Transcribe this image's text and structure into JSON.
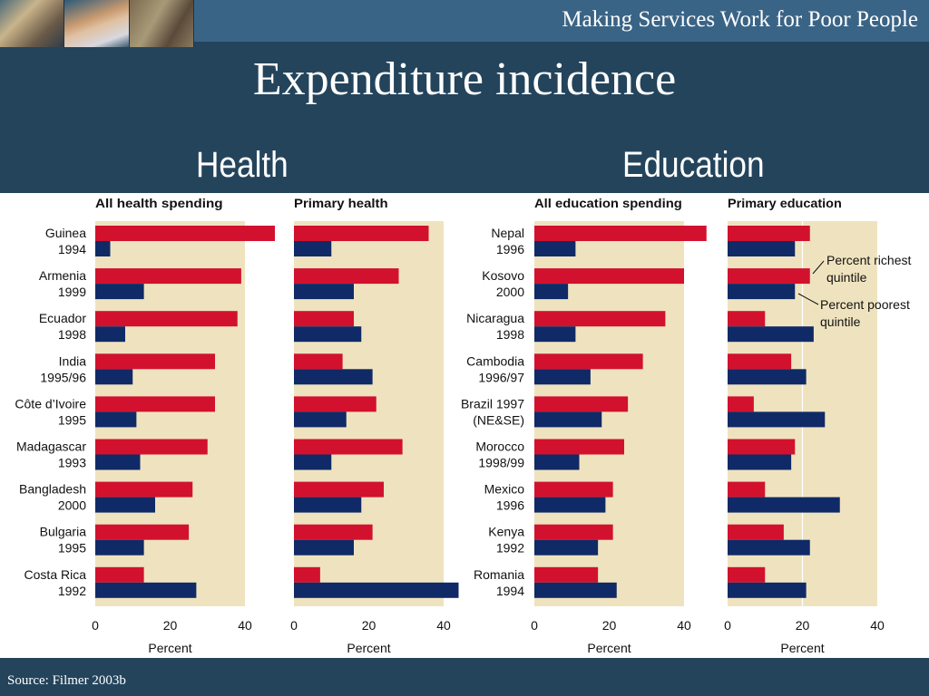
{
  "header": {
    "subtitle": "Making Services Work for Poor People",
    "title": "Expenditure incidence"
  },
  "sections": {
    "left": "Health",
    "right": "Education"
  },
  "footer": {
    "source": "Source: Filmer 2003b"
  },
  "legend": {
    "richest": [
      "Percent richest",
      "quintile"
    ],
    "poorest": [
      "Percent poorest",
      "quintile"
    ]
  },
  "colors": {
    "richest": "#d2112e",
    "poorest": "#0f2a66",
    "panel_bg": "#efe3bf",
    "header": "#24445c"
  },
  "chart_data": [
    {
      "type": "bar",
      "title": "All health spending",
      "xlabel": "Percent",
      "xlim": [
        0,
        40
      ],
      "xticks": [
        0,
        20,
        40
      ],
      "categories": [
        [
          "Guinea",
          "1994"
        ],
        [
          "Armenia",
          "1999"
        ],
        [
          "Ecuador",
          "1998"
        ],
        [
          "India",
          "1995/96"
        ],
        [
          "Côte d’Ivoire",
          "1995"
        ],
        [
          "Madagascar",
          "1993"
        ],
        [
          "Bangladesh",
          "2000"
        ],
        [
          "Bulgaria",
          "1995"
        ],
        [
          "Costa Rica",
          "1992"
        ]
      ],
      "series": [
        {
          "name": "Percent richest quintile",
          "values": [
            48,
            39,
            38,
            32,
            32,
            30,
            26,
            25,
            13
          ]
        },
        {
          "name": "Percent poorest quintile",
          "values": [
            4,
            13,
            8,
            10,
            11,
            12,
            16,
            13,
            27
          ]
        }
      ]
    },
    {
      "type": "bar",
      "title": "Primary health",
      "xlabel": "Percent",
      "xlim": [
        0,
        40
      ],
      "xticks": [
        0,
        20,
        40
      ],
      "categories": [
        [
          "Guinea",
          "1994"
        ],
        [
          "Armenia",
          "1999"
        ],
        [
          "Ecuador",
          "1998"
        ],
        [
          "India",
          "1995/96"
        ],
        [
          "Côte d’Ivoire",
          "1995"
        ],
        [
          "Madagascar",
          "1993"
        ],
        [
          "Bangladesh",
          "2000"
        ],
        [
          "Bulgaria",
          "1995"
        ],
        [
          "Costa Rica",
          "1992"
        ]
      ],
      "series": [
        {
          "name": "Percent richest quintile",
          "values": [
            36,
            28,
            16,
            13,
            22,
            29,
            24,
            21,
            7
          ]
        },
        {
          "name": "Percent poorest quintile",
          "values": [
            10,
            16,
            18,
            21,
            14,
            10,
            18,
            16,
            44
          ]
        }
      ]
    },
    {
      "type": "bar",
      "title": "All education spending",
      "xlabel": "Percent",
      "xlim": [
        0,
        40
      ],
      "xticks": [
        0,
        20,
        40
      ],
      "categories": [
        [
          "Nepal",
          "1996"
        ],
        [
          "Kosovo",
          "2000"
        ],
        [
          "Nicaragua",
          "1998"
        ],
        [
          "Cambodia",
          "1996/97"
        ],
        [
          "Brazil 1997",
          "(NE&SE)"
        ],
        [
          "Morocco",
          "1998/99"
        ],
        [
          "Mexico",
          "1996"
        ],
        [
          "Kenya",
          "1992"
        ],
        [
          "Romania",
          "1994"
        ]
      ],
      "series": [
        {
          "name": "Percent richest quintile",
          "values": [
            46,
            40,
            35,
            29,
            25,
            24,
            21,
            21,
            17
          ]
        },
        {
          "name": "Percent poorest quintile",
          "values": [
            11,
            9,
            11,
            15,
            18,
            12,
            19,
            17,
            22
          ]
        }
      ]
    },
    {
      "type": "bar",
      "title": "Primary education",
      "xlabel": "Percent",
      "xlim": [
        0,
        40
      ],
      "xticks": [
        0,
        20,
        40
      ],
      "categories": [
        [
          "Nepal",
          "1996"
        ],
        [
          "Kosovo",
          "2000"
        ],
        [
          "Nicaragua",
          "1998"
        ],
        [
          "Cambodia",
          "1996/97"
        ],
        [
          "Brazil 1997",
          "(NE&SE)"
        ],
        [
          "Morocco",
          "1998/99"
        ],
        [
          "Mexico",
          "1996"
        ],
        [
          "Kenya",
          "1992"
        ],
        [
          "Romania",
          "1994"
        ]
      ],
      "series": [
        {
          "name": "Percent richest quintile",
          "values": [
            22,
            null,
            10,
            17,
            7,
            18,
            10,
            15,
            10
          ]
        },
        {
          "name": "Percent poorest quintile",
          "values": [
            18,
            null,
            23,
            21,
            26,
            17,
            30,
            22,
            21
          ]
        }
      ]
    }
  ]
}
